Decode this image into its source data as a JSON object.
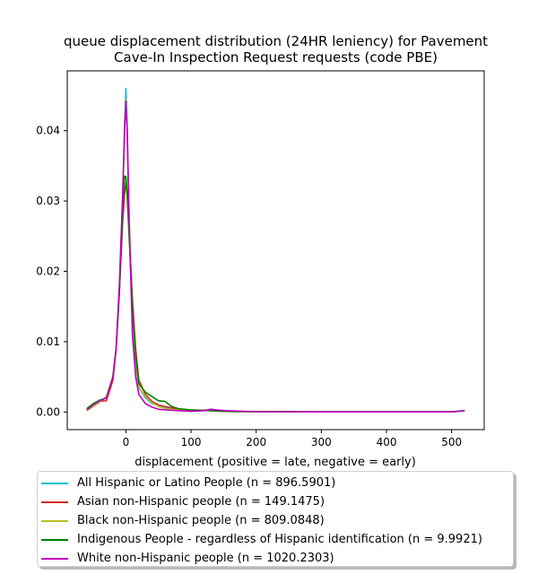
{
  "chart_data": {
    "type": "line",
    "title_line1": "queue displacement distribution (24HR leniency) for Pavement",
    "title_line2": "Cave-In Inspection Request  requests (code PBE)",
    "xlabel": "displacement (positive = late, negative = early)",
    "ylabel": "",
    "xlim": [
      -90,
      550
    ],
    "ylim": [
      -0.0025,
      0.0485
    ],
    "x_ticks": [
      0,
      100,
      200,
      300,
      400,
      500
    ],
    "y_ticks": [
      0.0,
      0.01,
      0.02,
      0.03,
      0.04
    ],
    "y_tick_labels": [
      "0.00",
      "0.01",
      "0.02",
      "0.03",
      "0.04"
    ],
    "legend_position": "below plot",
    "grid": false,
    "series": [
      {
        "name": "All Hispanic or Latino People (n = 896.5901)",
        "color": "#17becf",
        "x": [
          -60,
          -50,
          -40,
          -30,
          -20,
          -15,
          -10,
          -5,
          -2,
          0,
          2,
          5,
          10,
          15,
          20,
          30,
          40,
          50,
          60,
          80,
          100,
          130,
          150,
          200,
          300,
          400,
          500,
          520
        ],
        "y": [
          0.0004,
          0.001,
          0.0015,
          0.002,
          0.005,
          0.009,
          0.017,
          0.03,
          0.041,
          0.046,
          0.041,
          0.028,
          0.013,
          0.0065,
          0.0035,
          0.002,
          0.0012,
          0.0009,
          0.0006,
          0.0004,
          0.0002,
          0.0002,
          0.0001,
          5e-05,
          3e-05,
          3e-05,
          3e-05,
          0.0002
        ]
      },
      {
        "name": "Asian non-Hispanic people (n = 149.1475)",
        "color": "#d62728",
        "x": [
          -60,
          -50,
          -40,
          -30,
          -20,
          -15,
          -10,
          -5,
          -2,
          0,
          2,
          5,
          10,
          15,
          20,
          30,
          40,
          50,
          60,
          80,
          100,
          130,
          150,
          200,
          300,
          400,
          500,
          520
        ],
        "y": [
          0.0002,
          0.0008,
          0.0015,
          0.0016,
          0.0045,
          0.009,
          0.017,
          0.027,
          0.031,
          0.0325,
          0.031,
          0.026,
          0.016,
          0.009,
          0.0045,
          0.0025,
          0.0015,
          0.001,
          0.0008,
          0.0004,
          0.0003,
          0.0002,
          0.0001,
          5e-05,
          3e-05,
          3e-05,
          3e-05,
          0.0002
        ]
      },
      {
        "name": "Black non-Hispanic people (n = 809.0848)",
        "color": "#bcbd22",
        "x": [
          -60,
          -50,
          -40,
          -30,
          -20,
          -15,
          -10,
          -5,
          -2,
          0,
          2,
          5,
          10,
          15,
          20,
          30,
          40,
          50,
          60,
          80,
          100,
          130,
          150,
          200,
          300,
          400,
          500,
          520
        ],
        "y": [
          0.0002,
          0.0008,
          0.0014,
          0.0022,
          0.005,
          0.009,
          0.017,
          0.03,
          0.04,
          0.0445,
          0.04,
          0.028,
          0.013,
          0.007,
          0.0035,
          0.0022,
          0.0013,
          0.0008,
          0.0005,
          0.0003,
          0.0002,
          0.0003,
          0.0001,
          5e-05,
          3e-05,
          3e-05,
          3e-05,
          0.0002
        ]
      },
      {
        "name": "Indigenous People - regardless of Hispanic identification (n = 9.9921)",
        "color": "#008000",
        "x": [
          -60,
          -50,
          -40,
          -30,
          -20,
          -15,
          -10,
          -5,
          -2,
          0,
          2,
          5,
          10,
          15,
          20,
          30,
          40,
          50,
          60,
          70,
          80,
          100,
          130,
          150,
          200,
          300,
          400,
          500,
          520
        ],
        "y": [
          0.0005,
          0.0012,
          0.0017,
          0.002,
          0.005,
          0.009,
          0.017,
          0.028,
          0.0335,
          0.0335,
          0.031,
          0.025,
          0.015,
          0.008,
          0.004,
          0.0028,
          0.0022,
          0.0016,
          0.0015,
          0.0008,
          0.0005,
          0.0003,
          0.0002,
          0.0001,
          5e-05,
          3e-05,
          3e-05,
          3e-05,
          0.0002
        ]
      },
      {
        "name": "White non-Hispanic people (n = 1020.2303)",
        "color": "#bf00bf",
        "x": [
          -60,
          -50,
          -40,
          -30,
          -20,
          -15,
          -10,
          -5,
          -2,
          0,
          2,
          5,
          10,
          15,
          20,
          30,
          40,
          50,
          60,
          80,
          100,
          120,
          130,
          150,
          200,
          300,
          400,
          500,
          520
        ],
        "y": [
          0.0003,
          0.001,
          0.0016,
          0.002,
          0.005,
          0.009,
          0.018,
          0.031,
          0.04,
          0.0442,
          0.04,
          0.027,
          0.011,
          0.005,
          0.0025,
          0.0012,
          0.0007,
          0.0004,
          0.0003,
          0.0002,
          0.0001,
          0.0002,
          0.0004,
          0.0002,
          5e-05,
          3e-05,
          3e-05,
          3e-05,
          0.0002
        ]
      }
    ]
  }
}
